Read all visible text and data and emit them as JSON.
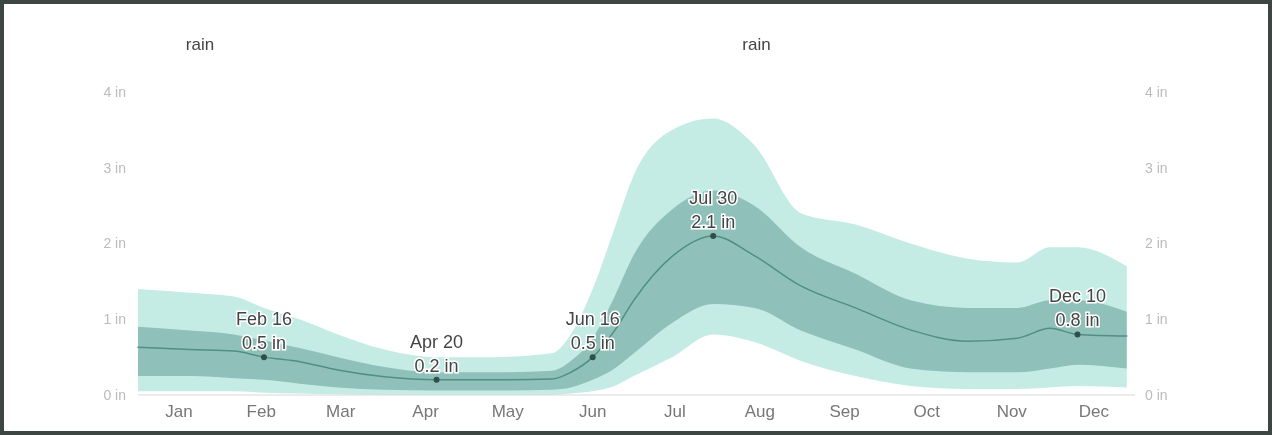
{
  "chart_data": {
    "type": "line",
    "title": "rain",
    "ylabel": "rain",
    "x": [
      "--01-01",
      "--01-20",
      "--02-05",
      "--02-16",
      "--03-01",
      "--03-15",
      "--04-01",
      "--04-20",
      "--05-10",
      "--06-01",
      "--06-08",
      "--06-16",
      "--06-24",
      "--07-01",
      "--07-15",
      "--07-30",
      "--08-14",
      "--08-31",
      "--09-20",
      "--10-10",
      "--10-31",
      "--11-18",
      "--11-30",
      "--12-10",
      "--12-28"
    ],
    "series": [
      {
        "color": "#c4ece5",
        "values": [
          null,
          null,
          null,
          null,
          null,
          null,
          null,
          null,
          null,
          null,
          null,
          null,
          null,
          null,
          null,
          null,
          null,
          null,
          null,
          null,
          null,
          null,
          null,
          null,
          null
        ],
        "upper": [
          1.4,
          1.35,
          1.3,
          1.15,
          1.0,
          0.8,
          0.6,
          0.5,
          0.5,
          0.55,
          0.8,
          1.4,
          2.2,
          2.9,
          3.5,
          3.65,
          3.3,
          2.4,
          2.25,
          2.0,
          1.8,
          1.75,
          1.95,
          1.95,
          1.7
        ],
        "lower": [
          0.05,
          0.05,
          0.05,
          0.03,
          0.02,
          0.01,
          0,
          0,
          0,
          0,
          0.02,
          0.05,
          0.12,
          0.25,
          0.5,
          0.8,
          0.7,
          0.45,
          0.25,
          0.12,
          0.08,
          0.08,
          0.1,
          0.12,
          0.1
        ]
      },
      {
        "color": "#4f8f86",
        "values": [
          0.63,
          0.6,
          0.58,
          0.5,
          0.44,
          0.33,
          0.24,
          0.2,
          0.2,
          0.21,
          0.3,
          0.5,
          0.85,
          1.25,
          1.83,
          2.1,
          1.84,
          1.44,
          1.15,
          0.86,
          0.71,
          0.75,
          0.88,
          0.8,
          0.78
        ],
        "lower": [
          0.25,
          0.25,
          0.22,
          0.2,
          0.15,
          0.1,
          0.07,
          0.06,
          0.06,
          0.07,
          0.1,
          0.2,
          0.35,
          0.55,
          0.95,
          1.2,
          1.15,
          0.85,
          0.6,
          0.35,
          0.3,
          0.3,
          0.35,
          0.4,
          0.35
        ],
        "upper": [
          0.9,
          0.85,
          0.8,
          0.72,
          0.62,
          0.5,
          0.37,
          0.3,
          0.3,
          0.32,
          0.45,
          0.75,
          1.3,
          1.85,
          2.45,
          2.7,
          2.5,
          1.95,
          1.6,
          1.25,
          1.15,
          1.15,
          1.25,
          1.25,
          1.1
        ]
      }
    ],
    "xlim": [
      "--01-01",
      "--12-31"
    ],
    "xticks": [
      {
        "value": "--01-16",
        "label": "Jan"
      },
      {
        "value": "--02-15",
        "label": "Feb"
      },
      {
        "value": "--03-16",
        "label": "Mar"
      },
      {
        "value": "--04-16",
        "label": "Apr"
      },
      {
        "value": "--05-16",
        "label": "May"
      },
      {
        "value": "--06-16",
        "label": "Jun"
      },
      {
        "value": "--07-16",
        "label": "Jul"
      },
      {
        "value": "--08-16",
        "label": "Aug"
      },
      {
        "value": "--09-16",
        "label": "Sep"
      },
      {
        "value": "--10-16",
        "label": "Oct"
      },
      {
        "value": "--11-16",
        "label": "Nov"
      },
      {
        "value": "--12-16",
        "label": "Dec"
      }
    ],
    "ylim": [
      0,
      4
    ],
    "yticks": [
      {
        "value": 0,
        "label": "0 in"
      },
      {
        "value": 1,
        "label": "1 in"
      },
      {
        "value": 2,
        "label": "2 in"
      },
      {
        "value": 3,
        "label": "3 in"
      },
      {
        "value": 4,
        "label": "4 in"
      }
    ],
    "y2lim": [
      0,
      4
    ],
    "y2ticks": [
      {
        "value": 0,
        "label": "0 in"
      },
      {
        "value": 1,
        "label": "1 in"
      },
      {
        "value": 2,
        "label": "2 in"
      },
      {
        "value": 3,
        "label": "3 in"
      },
      {
        "value": 4,
        "label": "4 in"
      }
    ],
    "annotations": [
      {
        "text": "Feb 16\n0.5 in",
        "x": "--02-16",
        "y": 0.5
      },
      {
        "text": "Apr 20\n0.2 in",
        "x": "--04-20",
        "y": 0.2
      },
      {
        "text": "Jun 16\n0.5 in",
        "x": "--06-16",
        "y": 0.5
      },
      {
        "text": "Jul 30\n2.1 in",
        "x": "--07-30",
        "y": 2.1
      },
      {
        "text": "Dec 10\n0.8 in",
        "x": "--12-10",
        "y": 0.8
      }
    ]
  }
}
